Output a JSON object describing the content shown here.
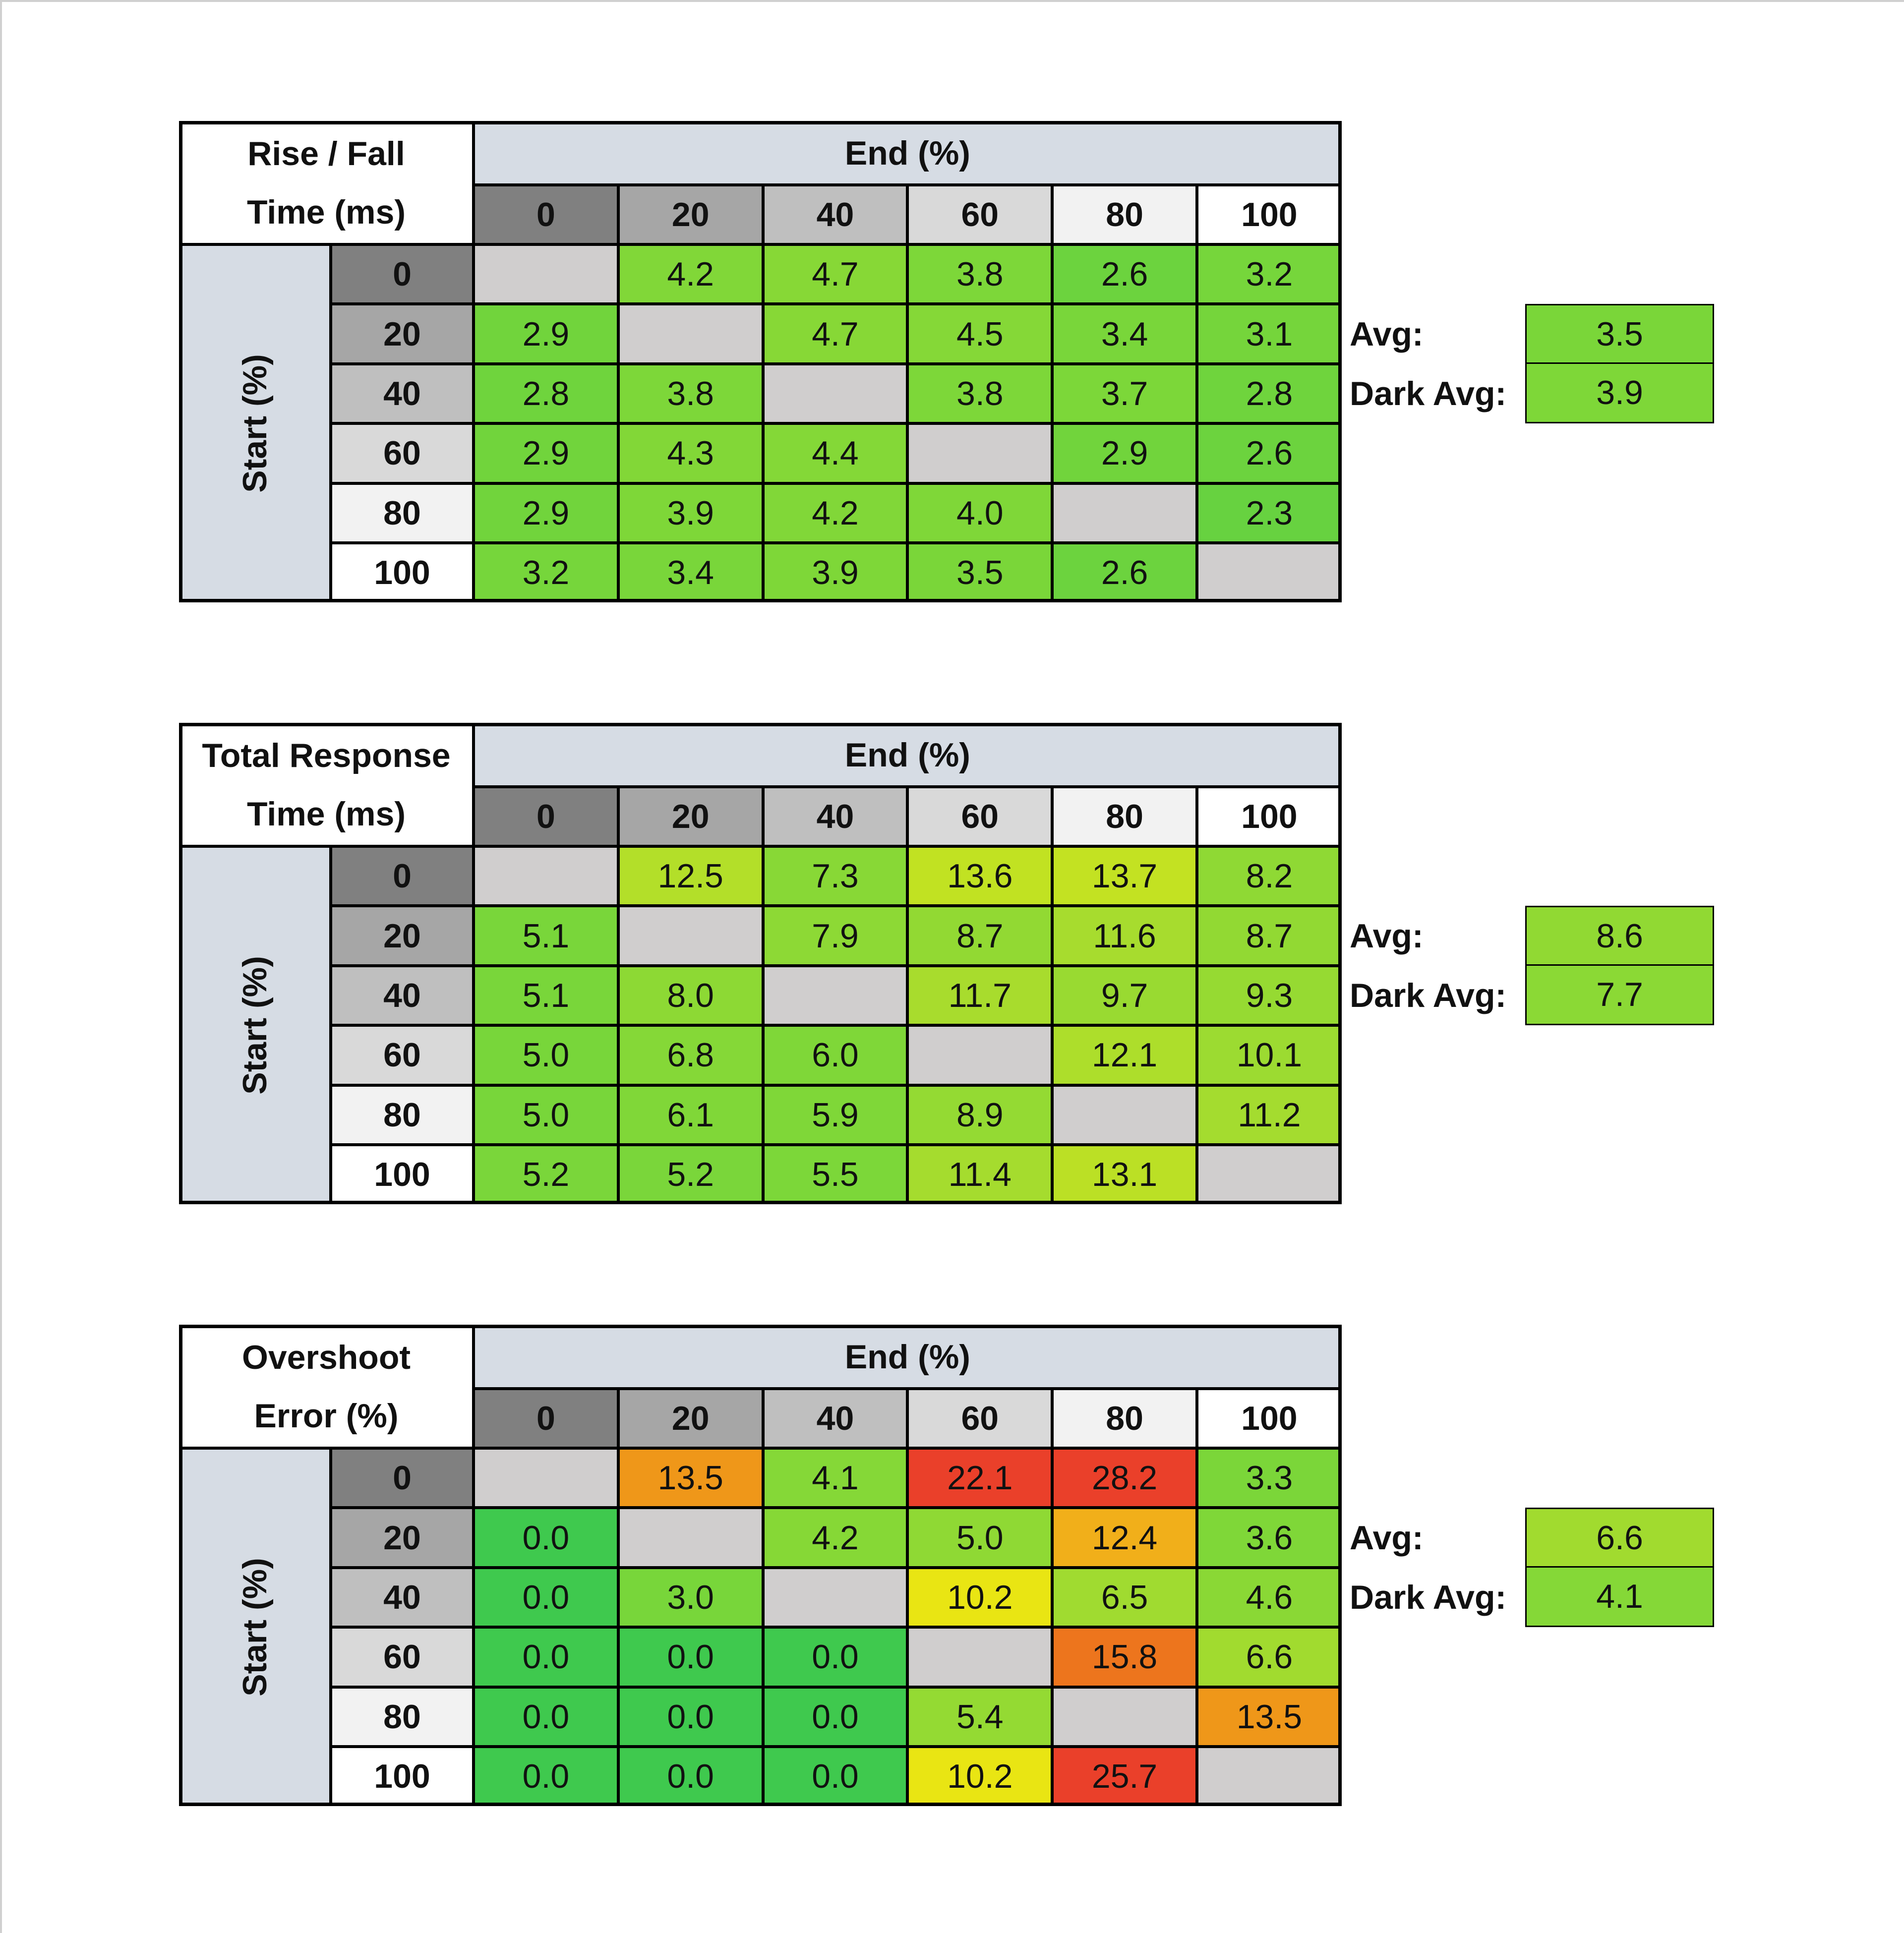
{
  "tables": [
    {
      "title": [
        "Rise / Fall",
        "Time (ms)"
      ],
      "end_label": "End (%)",
      "start_label": "Start (%)",
      "columns": [
        "0",
        "20",
        "40",
        "60",
        "80",
        "100"
      ],
      "rows": [
        "0",
        "20",
        "40",
        "60",
        "80",
        "100"
      ],
      "cells": [
        [
          null,
          "4.2",
          "4.7",
          "3.8",
          "2.6",
          "3.2"
        ],
        [
          "2.9",
          null,
          "4.7",
          "4.5",
          "3.4",
          "3.1"
        ],
        [
          "2.8",
          "3.8",
          null,
          "3.8",
          "3.7",
          "2.8"
        ],
        [
          "2.9",
          "4.3",
          "4.4",
          null,
          "2.9",
          "2.6"
        ],
        [
          "2.9",
          "3.9",
          "4.2",
          "4.0",
          null,
          "2.3"
        ],
        [
          "3.2",
          "3.4",
          "3.9",
          "3.5",
          "2.6",
          null
        ]
      ],
      "avg_label": "Avg:",
      "avg": "3.5",
      "dark_avg_label": "Dark Avg:",
      "dark_avg": "3.9"
    },
    {
      "title": [
        "Total Response",
        "Time (ms)"
      ],
      "end_label": "End (%)",
      "start_label": "Start (%)",
      "columns": [
        "0",
        "20",
        "40",
        "60",
        "80",
        "100"
      ],
      "rows": [
        "0",
        "20",
        "40",
        "60",
        "80",
        "100"
      ],
      "cells": [
        [
          null,
          "12.5",
          "7.3",
          "13.6",
          "13.7",
          "8.2"
        ],
        [
          "5.1",
          null,
          "7.9",
          "8.7",
          "11.6",
          "8.7"
        ],
        [
          "5.1",
          "8.0",
          null,
          "11.7",
          "9.7",
          "9.3"
        ],
        [
          "5.0",
          "6.8",
          "6.0",
          null,
          "12.1",
          "10.1"
        ],
        [
          "5.0",
          "6.1",
          "5.9",
          "8.9",
          null,
          "11.2"
        ],
        [
          "5.2",
          "5.2",
          "5.5",
          "11.4",
          "13.1",
          null
        ]
      ],
      "avg_label": "Avg:",
      "avg": "8.6",
      "dark_avg_label": "Dark Avg:",
      "dark_avg": "7.7"
    },
    {
      "title": [
        "Overshoot",
        "Error (%)"
      ],
      "end_label": "End (%)",
      "start_label": "Start (%)",
      "columns": [
        "0",
        "20",
        "40",
        "60",
        "80",
        "100"
      ],
      "rows": [
        "0",
        "20",
        "40",
        "60",
        "80",
        "100"
      ],
      "cells": [
        [
          null,
          "13.5",
          "4.1",
          "22.1",
          "28.2",
          "3.3"
        ],
        [
          "0.0",
          null,
          "4.2",
          "5.0",
          "12.4",
          "3.6"
        ],
        [
          "0.0",
          "3.0",
          null,
          "10.2",
          "6.5",
          "4.6"
        ],
        [
          "0.0",
          "0.0",
          "0.0",
          null,
          "15.8",
          "6.6"
        ],
        [
          "0.0",
          "0.0",
          "0.0",
          "5.4",
          null,
          "13.5"
        ],
        [
          "0.0",
          "0.0",
          "0.0",
          "10.2",
          "25.7",
          null
        ]
      ],
      "avg_label": "Avg:",
      "avg": "6.6",
      "dark_avg_label": "Dark Avg:",
      "dark_avg": "4.1"
    }
  ]
}
